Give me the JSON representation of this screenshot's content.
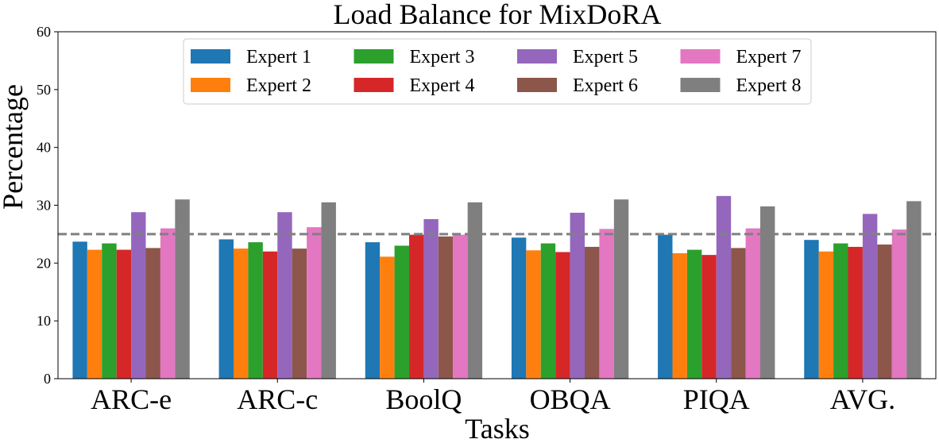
{
  "chart_data": {
    "type": "bar",
    "title": "Load Balance for MixDoRA",
    "xlabel": "Tasks",
    "ylabel": "Percentage",
    "ylim": [
      0,
      60
    ],
    "yticks": [
      0,
      10,
      20,
      30,
      40,
      50,
      60
    ],
    "categories": [
      "ARC-e",
      "ARC-c",
      "BoolQ",
      "OBQA",
      "PIQA",
      "AVG."
    ],
    "reference_line": {
      "value": 25,
      "style": "dashed",
      "color": "#808080"
    },
    "legend_position": "top-center",
    "series": [
      {
        "name": "Expert 1",
        "color": "#1f77b4",
        "values": [
          23.7,
          24.1,
          23.6,
          24.4,
          24.9,
          24.0
        ]
      },
      {
        "name": "Expert 2",
        "color": "#ff7f0e",
        "values": [
          22.3,
          22.5,
          21.1,
          22.2,
          21.7,
          22.0
        ]
      },
      {
        "name": "Expert 3",
        "color": "#2ca02c",
        "values": [
          23.4,
          23.6,
          23.0,
          23.4,
          22.3,
          23.4
        ]
      },
      {
        "name": "Expert 4",
        "color": "#d62728",
        "values": [
          22.3,
          22.0,
          24.9,
          21.9,
          21.4,
          22.8
        ]
      },
      {
        "name": "Expert 5",
        "color": "#9467bd",
        "values": [
          28.8,
          28.8,
          27.6,
          28.7,
          31.6,
          28.5
        ]
      },
      {
        "name": "Expert 6",
        "color": "#8c564b",
        "values": [
          22.6,
          22.5,
          24.6,
          22.8,
          22.6,
          23.2
        ]
      },
      {
        "name": "Expert 7",
        "color": "#e377c2",
        "values": [
          26.0,
          26.2,
          24.9,
          25.9,
          26.0,
          25.8
        ]
      },
      {
        "name": "Expert 8",
        "color": "#7f7f7f",
        "values": [
          31.0,
          30.5,
          30.5,
          31.0,
          29.8,
          30.7
        ]
      }
    ]
  }
}
